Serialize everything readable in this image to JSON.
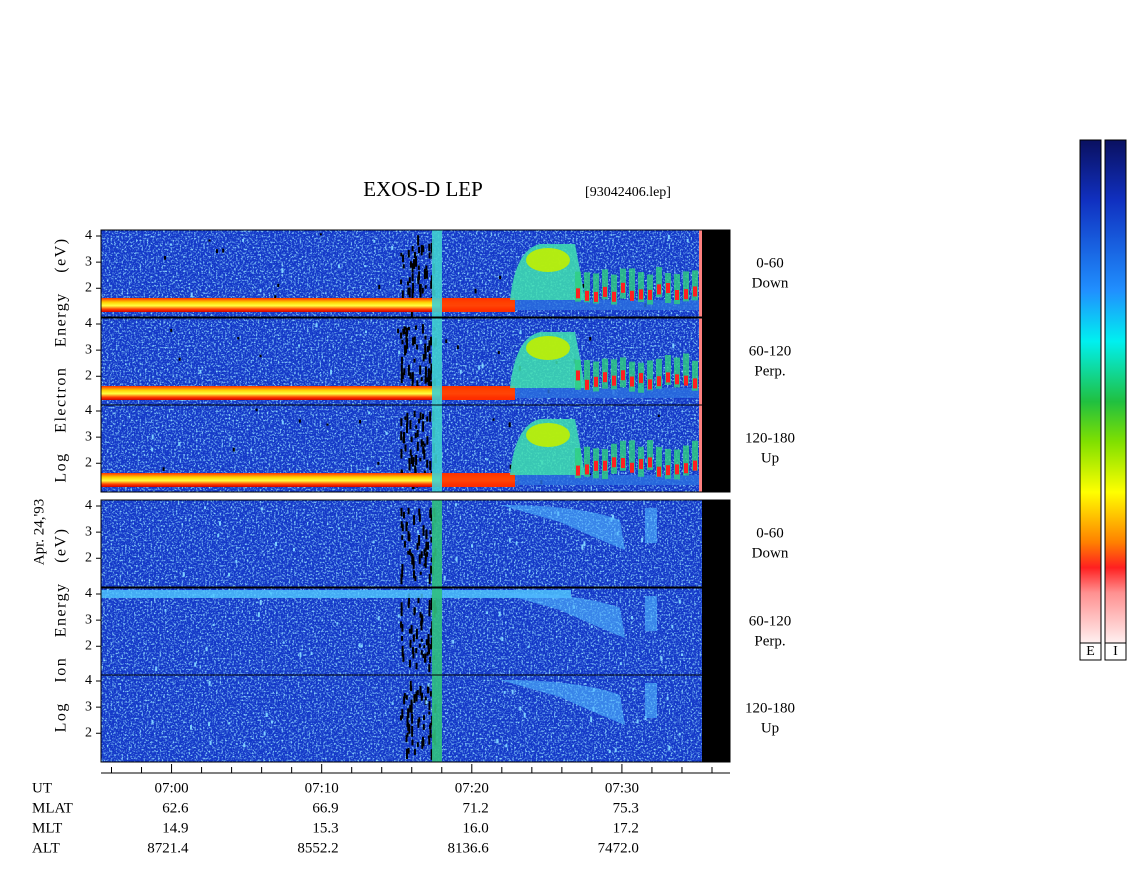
{
  "header": {
    "title": "EXOS-D LEP",
    "file": "[93042406.lep]"
  },
  "date_label": "Apr. 24,'93",
  "electron": {
    "axis_label": "Log Electron Energy (eV)",
    "panels": [
      {
        "angle": "0-60",
        "direction": "Down"
      },
      {
        "angle": "60-120",
        "direction": "Perp."
      },
      {
        "angle": "120-180",
        "direction": "Up"
      }
    ]
  },
  "ion": {
    "axis_label": "Log Ion Energy (eV)",
    "panels": [
      {
        "angle": "0-60",
        "direction": "Down"
      },
      {
        "angle": "60-120",
        "direction": "Perp."
      },
      {
        "angle": "120-180",
        "direction": "Up"
      }
    ]
  },
  "energy_axis": {
    "ylim": [
      0.9,
      4.23
    ],
    "yticks": [
      2,
      3,
      4
    ]
  },
  "time_axis": {
    "name": "UT",
    "xlim": [
      55.3,
      97.2
    ],
    "xticks": [
      {
        "value": 60,
        "label": "07:00"
      },
      {
        "value": 70,
        "label": "07:10"
      },
      {
        "value": 80,
        "label": "07:20"
      },
      {
        "value": 90,
        "label": "07:30"
      }
    ],
    "minor_xticks": [
      56,
      58,
      62,
      64,
      66,
      68,
      72,
      74,
      76,
      78,
      82,
      84,
      86,
      88,
      92,
      94,
      96
    ]
  },
  "ephemeris": {
    "rows": [
      {
        "name": "MLAT",
        "values": [
          "62.6",
          "66.9",
          "71.2",
          "75.3"
        ]
      },
      {
        "name": "MLT",
        "values": [
          "14.9",
          "15.3",
          "16.0",
          "17.2"
        ]
      },
      {
        "name": "ALT",
        "values": [
          "8721.4",
          "8552.2",
          "8136.6",
          "7472.0"
        ]
      }
    ]
  },
  "colorbar": {
    "labels": [
      "E",
      "I"
    ]
  }
}
